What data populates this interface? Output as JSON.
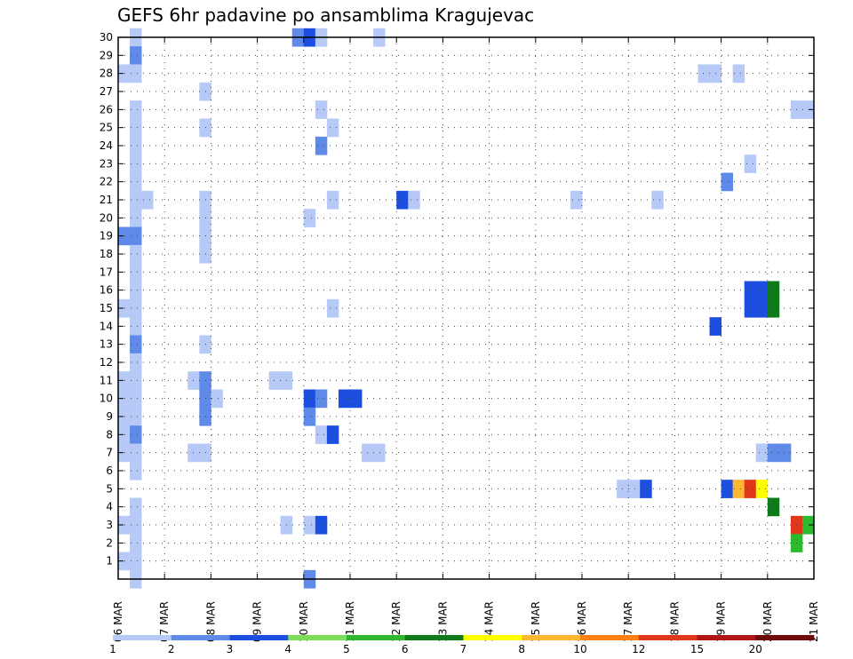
{
  "chart_data": {
    "type": "heatmap",
    "title": "GEFS 6hr padavine po ansamblima Kragujevac",
    "xlabel": "",
    "ylabel": "",
    "x_tick_labels": [
      "06 MAR",
      "07 MAR",
      "08 MAR",
      "09 MAR",
      "10 MAR",
      "11 MAR",
      "12 MAR",
      "13 MAR",
      "14 MAR",
      "15 MAR",
      "16 MAR",
      "17 MAR",
      "18 MAR",
      "19 MAR",
      "20 MAR",
      "21 MAR"
    ],
    "x_range_days": [
      0,
      15
    ],
    "y_tick_labels": [
      "1",
      "2",
      "3",
      "4",
      "5",
      "6",
      "7",
      "8",
      "9",
      "10",
      "11",
      "12",
      "13",
      "14",
      "15",
      "16",
      "17",
      "18",
      "19",
      "20",
      "21",
      "22",
      "23",
      "24",
      "25",
      "26",
      "27",
      "28",
      "29",
      "30"
    ],
    "y_range": [
      0,
      30
    ],
    "grid": true,
    "colorbar": {
      "labels": [
        "1",
        "2",
        "3",
        "4",
        "5",
        "6",
        "7",
        "8",
        "10",
        "12",
        "15",
        "20"
      ],
      "colors": [
        "#b7c9f6",
        "#5f8ae8",
        "#1c4ee0",
        "#7ddc5a",
        "#2db82d",
        "#0f7a1a",
        "#ffff00",
        "#ffb733",
        "#ff7f11",
        "#e0361a",
        "#b01616",
        "#6e0b0b"
      ]
    },
    "cells": [
      [
        0.25,
        30,
        0
      ],
      [
        0.25,
        29,
        1
      ],
      [
        0.25,
        28,
        0
      ],
      [
        0,
        28,
        0
      ],
      [
        0.25,
        26,
        0
      ],
      [
        0.25,
        25,
        0
      ],
      [
        0.25,
        24,
        0
      ],
      [
        0.25,
        23,
        0
      ],
      [
        0.25,
        22,
        0
      ],
      [
        0.25,
        21,
        0
      ],
      [
        0.5,
        21,
        0
      ],
      [
        0.25,
        20,
        0
      ],
      [
        0,
        19,
        1
      ],
      [
        0.25,
        19,
        1
      ],
      [
        0.25,
        18,
        0
      ],
      [
        0.25,
        17,
        0
      ],
      [
        0.25,
        16,
        0
      ],
      [
        0,
        15,
        0
      ],
      [
        0.25,
        15,
        0
      ],
      [
        0.25,
        14,
        0
      ],
      [
        0.25,
        13,
        1
      ],
      [
        0.25,
        12,
        0
      ],
      [
        0,
        11,
        0
      ],
      [
        0.25,
        11,
        0
      ],
      [
        0,
        10,
        0
      ],
      [
        0.25,
        10,
        0
      ],
      [
        0,
        9,
        0
      ],
      [
        0.25,
        9,
        0
      ],
      [
        0,
        8,
        0
      ],
      [
        0.25,
        8,
        1
      ],
      [
        0,
        7,
        0
      ],
      [
        0.25,
        7,
        0
      ],
      [
        0.25,
        6,
        0
      ],
      [
        0.25,
        4,
        0
      ],
      [
        0,
        3,
        0
      ],
      [
        0.25,
        3,
        0
      ],
      [
        0.25,
        2,
        0
      ],
      [
        0,
        1,
        0
      ],
      [
        0.25,
        1,
        0
      ],
      [
        0.25,
        0,
        0
      ],
      [
        1.75,
        27,
        0
      ],
      [
        1.75,
        25,
        0
      ],
      [
        1.75,
        21,
        0
      ],
      [
        1.75,
        20,
        0
      ],
      [
        1.75,
        19,
        0
      ],
      [
        1.75,
        18,
        0
      ],
      [
        1.75,
        13,
        0
      ],
      [
        1.5,
        11,
        0
      ],
      [
        1.75,
        11,
        1
      ],
      [
        1.75,
        10,
        1
      ],
      [
        2,
        10,
        0
      ],
      [
        1.75,
        9,
        1
      ],
      [
        1.5,
        7,
        0
      ],
      [
        1.75,
        7,
        0
      ],
      [
        3.25,
        11,
        0
      ],
      [
        3.5,
        11,
        0
      ],
      [
        3.5,
        3,
        0
      ],
      [
        3.75,
        30,
        1
      ],
      [
        4,
        30,
        2
      ],
      [
        4.25,
        30,
        0
      ],
      [
        4.25,
        26,
        0
      ],
      [
        4.5,
        25,
        0
      ],
      [
        4.25,
        24,
        1
      ],
      [
        4.5,
        21,
        0
      ],
      [
        4,
        20,
        0
      ],
      [
        4.5,
        15,
        0
      ],
      [
        4,
        10,
        2
      ],
      [
        4.25,
        10,
        1
      ],
      [
        4,
        9,
        1
      ],
      [
        4.25,
        8,
        0
      ],
      [
        4.5,
        8,
        2
      ],
      [
        4,
        3,
        0
      ],
      [
        4.25,
        3,
        2
      ],
      [
        4,
        0,
        1
      ],
      [
        4.75,
        10,
        2
      ],
      [
        5,
        10,
        2
      ],
      [
        5.25,
        7,
        0
      ],
      [
        5.5,
        7,
        0
      ],
      [
        5.5,
        30,
        0
      ],
      [
        6,
        21,
        2
      ],
      [
        6.25,
        21,
        0
      ],
      [
        9.75,
        21,
        0
      ],
      [
        11.5,
        21,
        0
      ],
      [
        10.75,
        5,
        0
      ],
      [
        11,
        5,
        0
      ],
      [
        11.25,
        5,
        2
      ],
      [
        12.5,
        28,
        0
      ],
      [
        12.75,
        28,
        0
      ],
      [
        13.25,
        28,
        0
      ],
      [
        13.5,
        23,
        0
      ],
      [
        13,
        22,
        1
      ],
      [
        12.75,
        14,
        2
      ],
      [
        13.5,
        16,
        2
      ],
      [
        13.75,
        16,
        2
      ],
      [
        13.5,
        15,
        2
      ],
      [
        13.75,
        15,
        2
      ],
      [
        14,
        16,
        5
      ],
      [
        14,
        15,
        5
      ],
      [
        13,
        5,
        2
      ],
      [
        13.25,
        5,
        7
      ],
      [
        13.5,
        5,
        9
      ],
      [
        13.75,
        5,
        6
      ],
      [
        14,
        4,
        5
      ],
      [
        13.75,
        7,
        0
      ],
      [
        14,
        7,
        1
      ],
      [
        14.25,
        7,
        1
      ],
      [
        14.5,
        26,
        0
      ],
      [
        14.75,
        26,
        0
      ],
      [
        14.5,
        3,
        9
      ],
      [
        14.75,
        3,
        4
      ],
      [
        14.5,
        2,
        4
      ]
    ]
  }
}
